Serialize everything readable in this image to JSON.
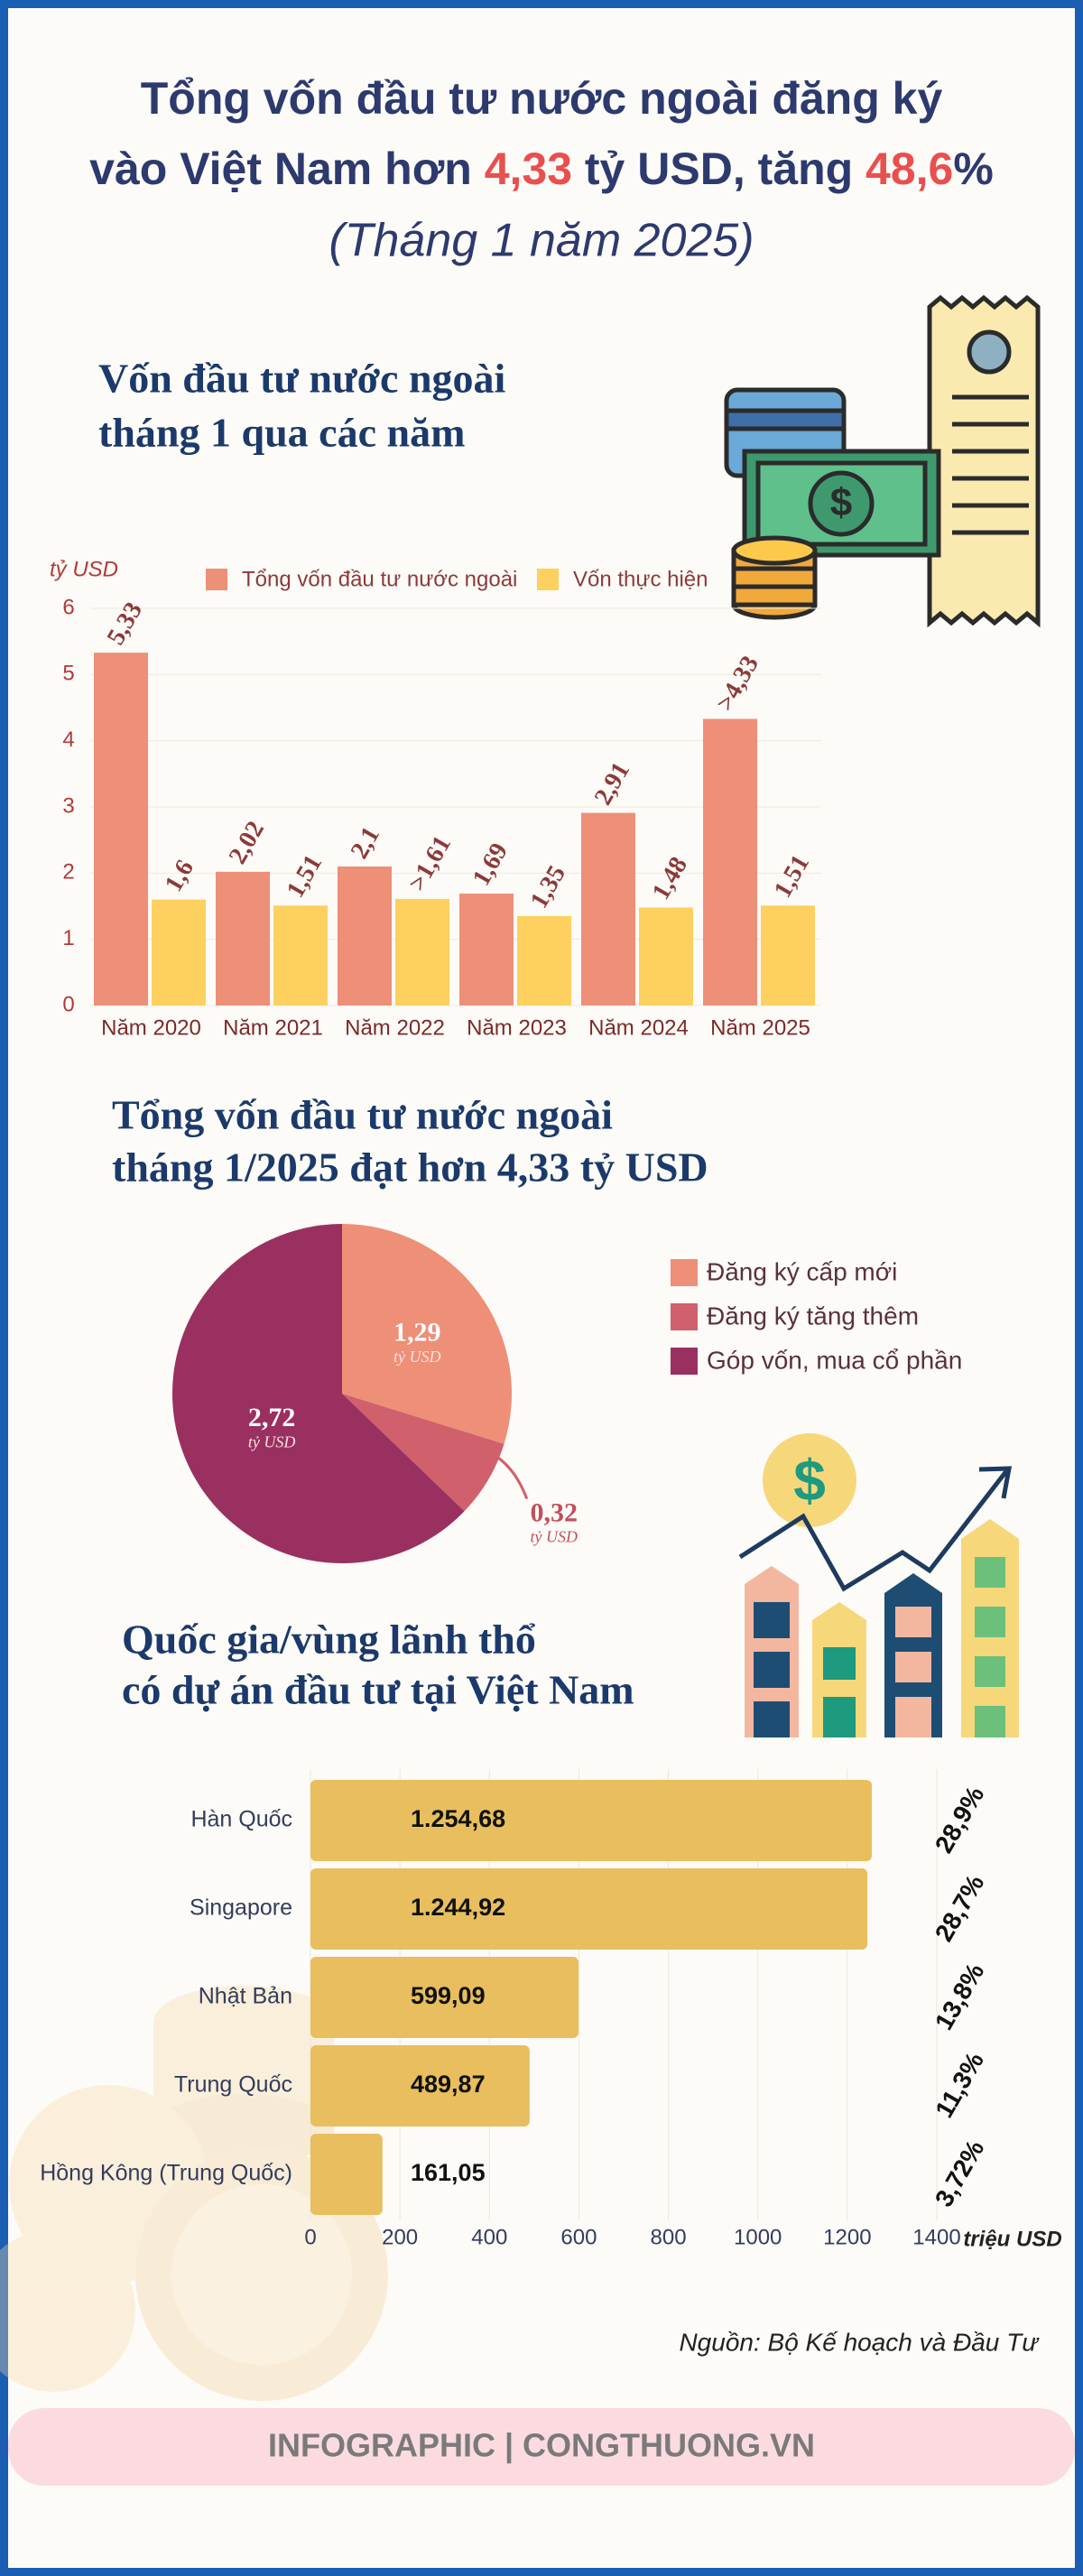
{
  "header": {
    "title_lines": [
      [
        "Tổng vốn đầu tư nước ngoài đăng ký"
      ],
      [
        "vào Việt Nam hơn ",
        "4,33",
        " tỷ USD, tăng ",
        "48,6",
        "%"
      ]
    ],
    "subtitle": "(Tháng 1 năm 2025)"
  },
  "chart_data": [
    {
      "type": "bar",
      "title_lines": [
        "Vốn đầu tư nước ngoài",
        "tháng 1 qua các năm"
      ],
      "y_label": "tỷ USD",
      "categories": [
        "Năm 2020",
        "Năm 2021",
        "Năm 2022",
        "Năm 2023",
        "Năm 2024",
        "Năm 2025"
      ],
      "series": [
        {
          "name": "Tổng vốn đầu tư nước ngoài",
          "color": "#ee8f77",
          "values": [
            5.33,
            2.02,
            2.1,
            1.69,
            2.91,
            4.33
          ],
          "value_labels": [
            "5,33",
            "2,02",
            "2,1",
            "1,69",
            "2,91",
            ">4,33"
          ]
        },
        {
          "name": "Vốn thực hiện",
          "color": "#fdd05f",
          "values": [
            1.6,
            1.51,
            1.61,
            1.35,
            1.48,
            1.51
          ],
          "value_labels": [
            "1,6",
            "1,51",
            ">1,61",
            "1,35",
            "1,48",
            "1,51"
          ]
        }
      ],
      "ylim": [
        0,
        6
      ],
      "yticks": [
        0,
        1,
        2,
        3,
        4,
        5,
        6
      ],
      "grid": true
    },
    {
      "type": "pie",
      "title_lines": [
        "Tổng vốn đầu tư nước ngoài",
        "tháng 1/2025 đạt hơn 4,33 tỷ USD"
      ],
      "categories": [
        "Đăng ký cấp mới",
        "Đăng ký tăng thêm",
        "Góp vốn, mua cổ phần"
      ],
      "values": [
        1.29,
        0.32,
        2.72
      ],
      "value_labels": [
        "1,29",
        "0,32",
        "2,72"
      ],
      "value_unit": "tỷ USD",
      "colors": [
        "#ee8f77",
        "#d0606b",
        "#9a3060"
      ]
    },
    {
      "type": "hbar",
      "title_lines": [
        "Quốc gia/vùng lãnh thổ",
        "có dự án đầu tư tại Việt Nam"
      ],
      "categories": [
        "Hàn Quốc",
        "Singapore",
        "Nhật Bản",
        "Trung Quốc",
        "Hồng Kông (Trung Quốc)"
      ],
      "values": [
        1254.68,
        1244.92,
        599.09,
        489.87,
        161.05
      ],
      "value_labels": [
        "1.254,68",
        "1.244,92",
        "599,09",
        "489,87",
        "161,05"
      ],
      "share_values": [
        28.9,
        28.7,
        13.8,
        11.3,
        3.72
      ],
      "share_labels": [
        "28,9%",
        "28,7%",
        "13,8%",
        "11,3%",
        "3,72%"
      ],
      "color": "#e8be5e",
      "x_label": "triệu USD",
      "xlim": [
        0,
        1400
      ],
      "xticks": [
        0,
        200,
        400,
        600,
        800,
        1000,
        1200,
        1400
      ],
      "grid": true
    }
  ],
  "footer": {
    "source": "Nguồn: Bộ Kế hoạch và Đầu Tư",
    "banner": "INFOGRAPHIC | CONGTHUONG.VN"
  }
}
